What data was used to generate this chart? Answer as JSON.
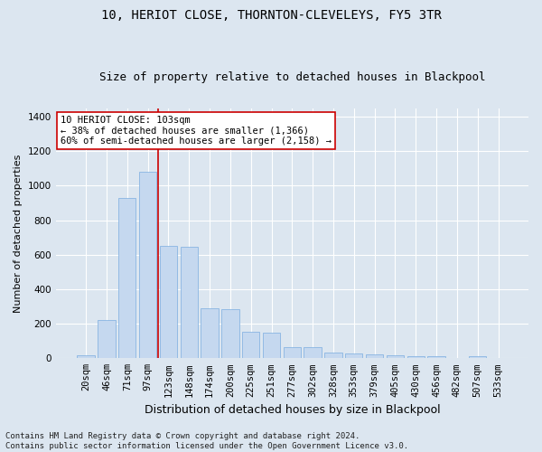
{
  "title": "10, HERIOT CLOSE, THORNTON-CLEVELEYS, FY5 3TR",
  "subtitle": "Size of property relative to detached houses in Blackpool",
  "xlabel": "Distribution of detached houses by size in Blackpool",
  "ylabel": "Number of detached properties",
  "categories": [
    "20sqm",
    "46sqm",
    "71sqm",
    "97sqm",
    "123sqm",
    "148sqm",
    "174sqm",
    "200sqm",
    "225sqm",
    "251sqm",
    "277sqm",
    "302sqm",
    "328sqm",
    "353sqm",
    "379sqm",
    "405sqm",
    "430sqm",
    "456sqm",
    "482sqm",
    "507sqm",
    "533sqm"
  ],
  "values": [
    15,
    220,
    930,
    1080,
    650,
    645,
    290,
    285,
    155,
    150,
    65,
    62,
    32,
    28,
    20,
    18,
    14,
    12,
    0,
    12,
    0
  ],
  "bar_color": "#c5d8ef",
  "bar_edgecolor": "#7aade0",
  "vline_x": 3.5,
  "vline_color": "#cc0000",
  "annotation_text": "10 HERIOT CLOSE: 103sqm\n← 38% of detached houses are smaller (1,366)\n60% of semi-detached houses are larger (2,158) →",
  "annotation_box_color": "#ffffff",
  "annotation_box_edgecolor": "#cc0000",
  "ylim": [
    0,
    1450
  ],
  "yticks": [
    0,
    200,
    400,
    600,
    800,
    1000,
    1200,
    1400
  ],
  "fig_bg": "#dce6f0",
  "plot_bg": "#dce6f0",
  "title_fontsize": 10,
  "subtitle_fontsize": 9,
  "xlabel_fontsize": 9,
  "ylabel_fontsize": 8,
  "tick_fontsize": 7.5,
  "annotation_fontsize": 7.5,
  "footer_fontsize": 6.5,
  "footer": "Contains HM Land Registry data © Crown copyright and database right 2024.\nContains public sector information licensed under the Open Government Licence v3.0."
}
